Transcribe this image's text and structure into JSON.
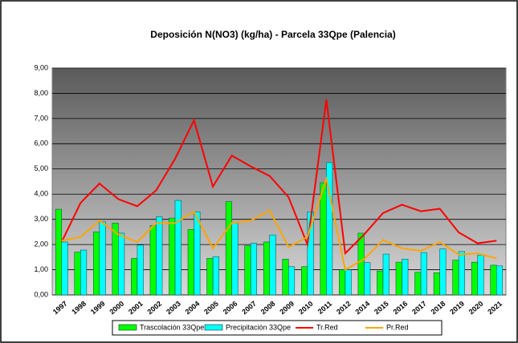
{
  "chart_data": {
    "type": "bar_line",
    "title": "Deposición N(NO3) (kg/ha) - Parcela 33Qpe (Palencia)",
    "categories": [
      "1997",
      "1998",
      "1999",
      "2000",
      "2001",
      "2002",
      "2003",
      "2004",
      "2005",
      "2006",
      "2007",
      "2008",
      "2009",
      "2010",
      "2011",
      "2012",
      "2014",
      "2015",
      "2016",
      "2017",
      "2018",
      "2019",
      "2020",
      "2021"
    ],
    "series": [
      {
        "name": "Trascolación  33Qpe",
        "kind": "bar",
        "color": "#00ff00",
        "values": [
          3.4,
          1.7,
          2.5,
          2.85,
          1.45,
          2.75,
          3.05,
          2.6,
          1.45,
          3.7,
          1.95,
          2.1,
          1.42,
          1.12,
          4.45,
          1.0,
          2.45,
          0.95,
          1.3,
          0.9,
          0.88,
          1.38,
          1.3,
          1.18
        ]
      },
      {
        "name": "Precipitación 33Qpe",
        "kind": "bar",
        "color": "#00ffff",
        "values": [
          2.1,
          1.78,
          2.9,
          2.45,
          1.98,
          3.1,
          3.75,
          3.3,
          1.52,
          2.85,
          2.05,
          2.38,
          1.12,
          3.3,
          5.25,
          1.0,
          1.28,
          1.62,
          1.42,
          1.68,
          1.82,
          1.72,
          1.58,
          1.15
        ]
      },
      {
        "name": "Tr.Red",
        "kind": "line",
        "color": "#ff0000",
        "values": [
          2.1,
          3.65,
          4.42,
          3.8,
          3.52,
          4.15,
          5.4,
          6.93,
          4.3,
          5.53,
          5.1,
          4.72,
          3.88,
          2.0,
          7.75,
          1.65,
          2.4,
          3.25,
          3.58,
          3.32,
          3.42,
          2.48,
          2.05,
          2.15
        ]
      },
      {
        "name": "Pr.Red",
        "kind": "line",
        "color": "#ffa500",
        "values": [
          2.15,
          2.3,
          2.95,
          2.4,
          2.1,
          2.85,
          2.85,
          3.3,
          1.85,
          2.85,
          2.95,
          3.35,
          1.9,
          2.3,
          4.6,
          1.0,
          1.42,
          2.18,
          1.85,
          1.75,
          2.1,
          1.6,
          1.65,
          1.45
        ]
      }
    ],
    "ylim": [
      0,
      9
    ],
    "yticks": [
      {
        "value": 0,
        "label": "0,00"
      },
      {
        "value": 1,
        "label": "1,00"
      },
      {
        "value": 2,
        "label": "2,00"
      },
      {
        "value": 3,
        "label": "3,00"
      },
      {
        "value": 4,
        "label": "4,00"
      },
      {
        "value": 5,
        "label": "5,00"
      },
      {
        "value": 6,
        "label": "6,00"
      },
      {
        "value": 7,
        "label": "7,00"
      },
      {
        "value": 8,
        "label": "8,00"
      },
      {
        "value": 9,
        "label": "9,00"
      }
    ],
    "grid": true,
    "legend": "bottom"
  }
}
